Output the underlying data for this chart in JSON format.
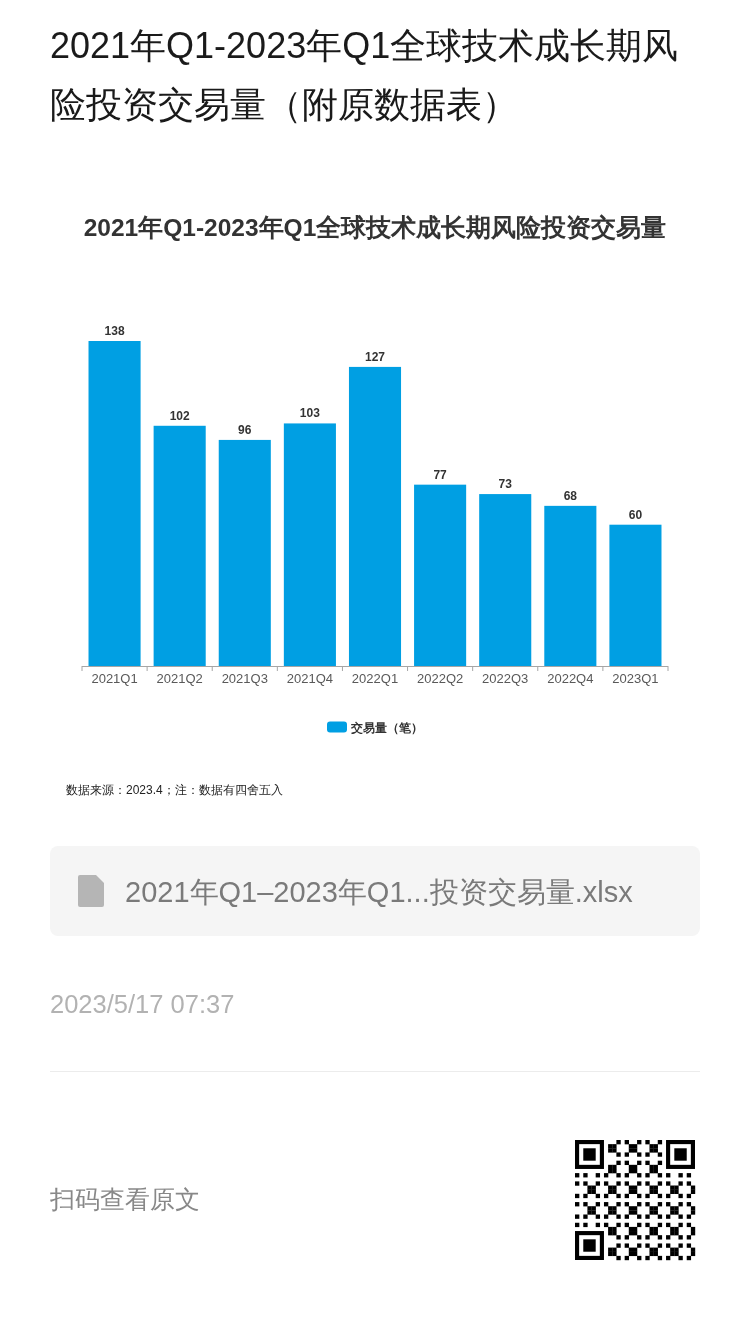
{
  "chart_data": {
    "type": "bar",
    "title": "2021年Q1-2023年Q1全球技术成长期风险投资交易量",
    "categories": [
      "2021Q1",
      "2021Q2",
      "2021Q3",
      "2021Q4",
      "2022Q1",
      "2022Q2",
      "2022Q3",
      "2022Q4",
      "2023Q1"
    ],
    "series": [
      {
        "name": "交易量（笔）",
        "color": "#009fe3",
        "values": [
          138,
          102,
          96,
          103,
          127,
          77,
          73,
          68,
          60
        ]
      }
    ],
    "data_labels": true,
    "legend": "bottom",
    "annotations": [
      "2021年Q1-2023年Q1全球技术成长期风险投资交易量（附原数据表）",
      "数据来源：2023.4；注：数据有四舍五入",
      "2021年Q1–2023年Q1...投资交易量.xlsx",
      "2023/5/17 07:37",
      "扫码查看原文"
    ]
  }
}
